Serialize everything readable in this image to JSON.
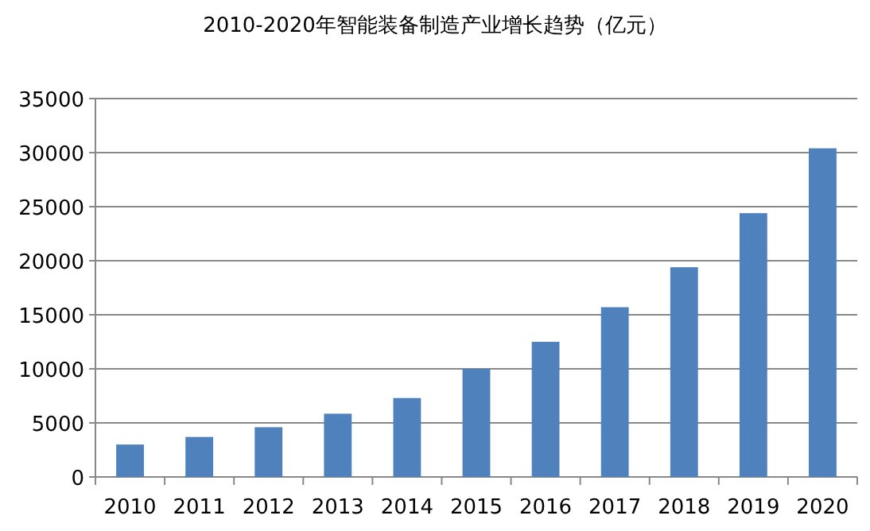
{
  "chart_data": {
    "type": "bar",
    "title": "2010-2020年智能装备制造产业增长趋势（亿元）",
    "categories": [
      "2010",
      "2011",
      "2012",
      "2013",
      "2014",
      "2015",
      "2016",
      "2017",
      "2018",
      "2019",
      "2020"
    ],
    "values": [
      3000,
      3700,
      4600,
      5850,
      7300,
      10000,
      12500,
      15700,
      19400,
      24400,
      30400
    ],
    "color": "#4f81bd",
    "ylim": [
      0,
      35000
    ],
    "yticks": [
      0,
      5000,
      10000,
      15000,
      20000,
      25000,
      30000,
      35000
    ],
    "grid": "y"
  }
}
